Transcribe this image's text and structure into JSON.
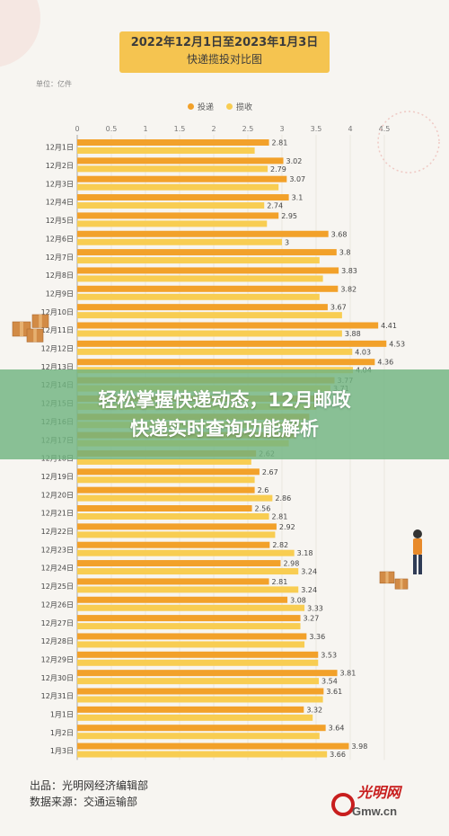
{
  "header": {
    "title": "2022年12月1日至2023年1月3日",
    "subtitle": "快递揽投对比图"
  },
  "unit_label": "单位：亿件",
  "legend": {
    "s1": "投递",
    "s2": "揽收"
  },
  "banner": {
    "line1": "轻松掌握快递动态，12月邮政",
    "line2": "快递实时查询功能解析"
  },
  "footer": {
    "source1": "出品：光明网经济编辑部",
    "source2": "数据来源：交通运输部"
  },
  "watermark": {
    "text": "光明网",
    "domain": "Gmw.cn"
  },
  "colors": {
    "s1": "#f2a12a",
    "s2": "#f8cd52",
    "banner": "#70b480"
  },
  "chart_data": {
    "type": "bar",
    "orientation": "horizontal",
    "xlim": [
      0,
      4.5
    ],
    "xticks": [
      "0",
      "0.5",
      "1",
      "1.5",
      "2",
      "2.5",
      "3",
      "3.5",
      "4",
      "4.5"
    ],
    "categories": [
      "12月1日",
      "12月2日",
      "12月3日",
      "12月4日",
      "12月5日",
      "12月6日",
      "12月7日",
      "12月8日",
      "12月9日",
      "12月10日",
      "12月11日",
      "12月12日",
      "12月13日",
      "12月14日",
      "12月15日",
      "12月16日",
      "12月17日",
      "12月18日",
      "12月19日",
      "12月20日",
      "12月21日",
      "12月22日",
      "12月23日",
      "12月24日",
      "12月25日",
      "12月26日",
      "12月27日",
      "12月28日",
      "12月29日",
      "12月30日",
      "12月31日",
      "1月1日",
      "1月2日",
      "1月3日"
    ],
    "series": [
      {
        "name": "投递",
        "values": [
          2.81,
          3.02,
          3.07,
          3.1,
          2.95,
          3.68,
          3.8,
          3.83,
          3.82,
          3.67,
          4.41,
          4.53,
          4.36,
          3.77,
          3.6,
          3.4,
          3.2,
          2.62,
          2.67,
          2.6,
          2.56,
          2.92,
          2.82,
          2.98,
          2.81,
          3.08,
          3.27,
          3.36,
          3.53,
          3.81,
          3.61,
          3.32,
          3.64,
          3.98
        ],
        "labels": [
          "2.81",
          "3.02",
          "3.07",
          "3.1",
          "2.95",
          "3.68",
          "3.8",
          "3.83",
          "3.82",
          "3.67",
          "4.41",
          "4.53",
          "4.36",
          "3.77",
          "",
          "",
          "",
          "2.62",
          "2.67",
          "2.6",
          "2.56",
          "2.92",
          "2.82",
          "2.98",
          "2.81",
          "3.08",
          "3.27",
          "3.36",
          "3.53",
          "3.81",
          "3.61",
          "3.32",
          "3.64",
          "3.98"
        ]
      },
      {
        "name": "揽收",
        "values": [
          2.6,
          2.79,
          2.95,
          2.74,
          2.78,
          3,
          3.55,
          3.6,
          3.55,
          3.88,
          3.88,
          4.03,
          4.04,
          3.71,
          3.5,
          3.3,
          3.1,
          2.55,
          2.6,
          2.86,
          2.81,
          2.9,
          3.18,
          3.24,
          3.24,
          3.33,
          3.27,
          3.33,
          3.53,
          3.54,
          3.6,
          3.45,
          3.55,
          3.66
        ],
        "labels": [
          "",
          "2.79",
          "",
          "2.74",
          "",
          "3",
          "",
          "",
          "",
          "",
          "3.88",
          "4.03",
          "4.04",
          "3.71",
          "",
          "",
          "",
          "",
          "",
          "2.86",
          "2.81",
          "",
          "3.18",
          "3.24",
          "3.24",
          "3.33",
          "",
          "",
          "",
          "3.54",
          "",
          "",
          "",
          "3.66"
        ]
      }
    ]
  }
}
